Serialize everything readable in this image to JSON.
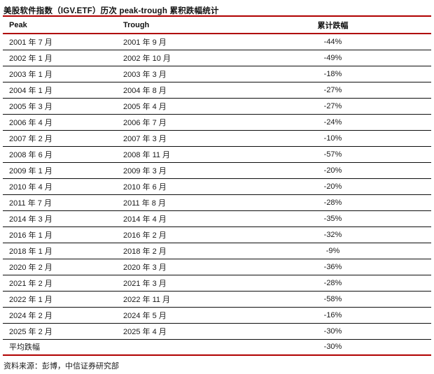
{
  "title": "美股软件指数（IGV.ETF）历次 peak-trough 累积跌幅统计",
  "table": {
    "headers": [
      "Peak",
      "Trough",
      "累计跌幅"
    ],
    "rows": [
      [
        "2001 年 7 月",
        "2001 年 9 月",
        "-44%"
      ],
      [
        "2002 年 1 月",
        "2002 年 10 月",
        "-49%"
      ],
      [
        "2003 年 1 月",
        "2003 年 3 月",
        "-18%"
      ],
      [
        "2004 年 1 月",
        "2004 年 8 月",
        "-27%"
      ],
      [
        "2005 年 3 月",
        "2005 年 4 月",
        "-27%"
      ],
      [
        "2006 年 4 月",
        "2006 年 7 月",
        "-24%"
      ],
      [
        "2007 年 2 月",
        "2007 年 3 月",
        "-10%"
      ],
      [
        "2008 年 6 月",
        "2008 年 11 月",
        "-57%"
      ],
      [
        "2009 年 1 月",
        "2009 年 3 月",
        "-20%"
      ],
      [
        "2010 年 4 月",
        "2010 年 6 月",
        "-20%"
      ],
      [
        "2011 年 7 月",
        "2011 年 8 月",
        "-28%"
      ],
      [
        "2014 年 3 月",
        "2014 年 4 月",
        "-35%"
      ],
      [
        "2016 年 1 月",
        "2016 年 2 月",
        "-32%"
      ],
      [
        "2018 年 1 月",
        "2018 年 2 月",
        "-9%"
      ],
      [
        "2020 年 2 月",
        "2020 年 3 月",
        "-36%"
      ],
      [
        "2021 年 2 月",
        "2021 年 3 月",
        "-28%"
      ],
      [
        "2022 年 1 月",
        "2022 年 11 月",
        "-58%"
      ],
      [
        "2024 年 2 月",
        "2024 年 5 月",
        "-16%"
      ],
      [
        "2025 年 2 月",
        "2025 年 4 月",
        "-30%"
      ]
    ],
    "summary": {
      "label": "平均跌幅",
      "trough": "",
      "value": "-30%"
    }
  },
  "source": "资料来源：彭博，中信证券研究部",
  "colors": {
    "accent": "#B00000",
    "row_line": "#0D0D0D",
    "text": "#1A1A1A"
  }
}
